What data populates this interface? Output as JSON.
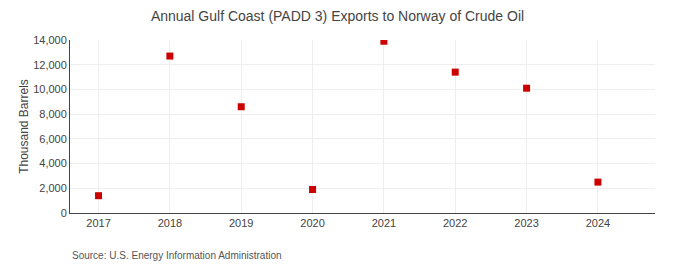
{
  "chart_data": {
    "type": "scatter",
    "title": "Annual Gulf Coast (PADD 3) Exports to Norway of Crude Oil",
    "ylabel": "Thousand Barrels",
    "annotations": [
      "Source: U.S. Energy Information Administration"
    ],
    "x": [
      2017,
      2018,
      2019,
      2020,
      2021,
      2022,
      2023,
      2024
    ],
    "values": [
      1400,
      12700,
      8600,
      1900,
      13900,
      11400,
      10100,
      2500
    ],
    "color": "#cc0000",
    "marker": "square",
    "xlim": [
      2016.6,
      2024.8
    ],
    "xticks": [
      2017,
      2018,
      2019,
      2020,
      2021,
      2022,
      2023,
      2024
    ],
    "ylim": [
      0,
      14000
    ],
    "yticks": [
      0,
      {
        "value": 2000,
        "label": "2,000"
      },
      {
        "value": 4000,
        "label": "4,000"
      },
      {
        "value": 6000,
        "label": "6,000"
      },
      {
        "value": 8000,
        "label": "8,000"
      },
      {
        "value": 10000,
        "label": "10,000"
      },
      {
        "value": 12000,
        "label": "12,000"
      },
      {
        "value": 14000,
        "label": "14,000"
      }
    ],
    "grid": true
  }
}
